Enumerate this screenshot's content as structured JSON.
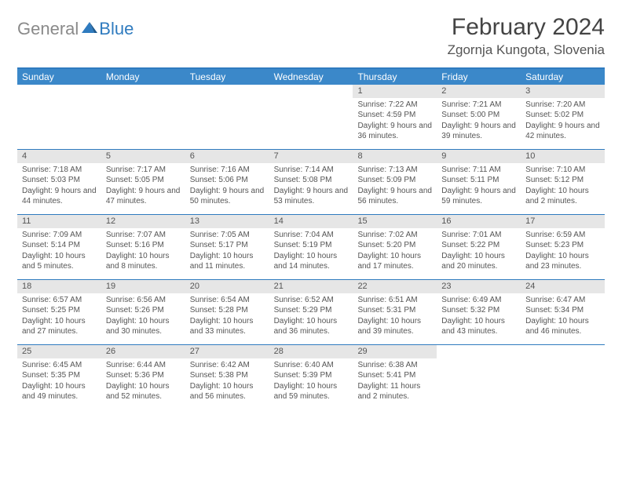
{
  "logo": {
    "text1": "General",
    "text2": "Blue"
  },
  "title": "February 2024",
  "location": "Zgornja Kungota, Slovenia",
  "colors": {
    "header_blue": "#3b88c9",
    "rule_blue": "#2f7bbf",
    "band_gray": "#e6e6e6",
    "text_gray": "#555555",
    "logo_gray": "#8a8a8a",
    "logo_blue": "#2f7bbf",
    "white": "#ffffff"
  },
  "typography": {
    "title_fontsize": 30,
    "location_fontsize": 17,
    "dayheader_fontsize": 12,
    "cell_fontsize": 10,
    "font_family": "Arial"
  },
  "dayHeaders": [
    "Sunday",
    "Monday",
    "Tuesday",
    "Wednesday",
    "Thursday",
    "Friday",
    "Saturday"
  ],
  "weeks": [
    [
      {
        "empty": true
      },
      {
        "empty": true
      },
      {
        "empty": true
      },
      {
        "empty": true
      },
      {
        "num": "1",
        "sunrise": "Sunrise: 7:22 AM",
        "sunset": "Sunset: 4:59 PM",
        "daylight": "Daylight: 9 hours and 36 minutes."
      },
      {
        "num": "2",
        "sunrise": "Sunrise: 7:21 AM",
        "sunset": "Sunset: 5:00 PM",
        "daylight": "Daylight: 9 hours and 39 minutes."
      },
      {
        "num": "3",
        "sunrise": "Sunrise: 7:20 AM",
        "sunset": "Sunset: 5:02 PM",
        "daylight": "Daylight: 9 hours and 42 minutes."
      }
    ],
    [
      {
        "num": "4",
        "sunrise": "Sunrise: 7:18 AM",
        "sunset": "Sunset: 5:03 PM",
        "daylight": "Daylight: 9 hours and 44 minutes."
      },
      {
        "num": "5",
        "sunrise": "Sunrise: 7:17 AM",
        "sunset": "Sunset: 5:05 PM",
        "daylight": "Daylight: 9 hours and 47 minutes."
      },
      {
        "num": "6",
        "sunrise": "Sunrise: 7:16 AM",
        "sunset": "Sunset: 5:06 PM",
        "daylight": "Daylight: 9 hours and 50 minutes."
      },
      {
        "num": "7",
        "sunrise": "Sunrise: 7:14 AM",
        "sunset": "Sunset: 5:08 PM",
        "daylight": "Daylight: 9 hours and 53 minutes."
      },
      {
        "num": "8",
        "sunrise": "Sunrise: 7:13 AM",
        "sunset": "Sunset: 5:09 PM",
        "daylight": "Daylight: 9 hours and 56 minutes."
      },
      {
        "num": "9",
        "sunrise": "Sunrise: 7:11 AM",
        "sunset": "Sunset: 5:11 PM",
        "daylight": "Daylight: 9 hours and 59 minutes."
      },
      {
        "num": "10",
        "sunrise": "Sunrise: 7:10 AM",
        "sunset": "Sunset: 5:12 PM",
        "daylight": "Daylight: 10 hours and 2 minutes."
      }
    ],
    [
      {
        "num": "11",
        "sunrise": "Sunrise: 7:09 AM",
        "sunset": "Sunset: 5:14 PM",
        "daylight": "Daylight: 10 hours and 5 minutes."
      },
      {
        "num": "12",
        "sunrise": "Sunrise: 7:07 AM",
        "sunset": "Sunset: 5:16 PM",
        "daylight": "Daylight: 10 hours and 8 minutes."
      },
      {
        "num": "13",
        "sunrise": "Sunrise: 7:05 AM",
        "sunset": "Sunset: 5:17 PM",
        "daylight": "Daylight: 10 hours and 11 minutes."
      },
      {
        "num": "14",
        "sunrise": "Sunrise: 7:04 AM",
        "sunset": "Sunset: 5:19 PM",
        "daylight": "Daylight: 10 hours and 14 minutes."
      },
      {
        "num": "15",
        "sunrise": "Sunrise: 7:02 AM",
        "sunset": "Sunset: 5:20 PM",
        "daylight": "Daylight: 10 hours and 17 minutes."
      },
      {
        "num": "16",
        "sunrise": "Sunrise: 7:01 AM",
        "sunset": "Sunset: 5:22 PM",
        "daylight": "Daylight: 10 hours and 20 minutes."
      },
      {
        "num": "17",
        "sunrise": "Sunrise: 6:59 AM",
        "sunset": "Sunset: 5:23 PM",
        "daylight": "Daylight: 10 hours and 23 minutes."
      }
    ],
    [
      {
        "num": "18",
        "sunrise": "Sunrise: 6:57 AM",
        "sunset": "Sunset: 5:25 PM",
        "daylight": "Daylight: 10 hours and 27 minutes."
      },
      {
        "num": "19",
        "sunrise": "Sunrise: 6:56 AM",
        "sunset": "Sunset: 5:26 PM",
        "daylight": "Daylight: 10 hours and 30 minutes."
      },
      {
        "num": "20",
        "sunrise": "Sunrise: 6:54 AM",
        "sunset": "Sunset: 5:28 PM",
        "daylight": "Daylight: 10 hours and 33 minutes."
      },
      {
        "num": "21",
        "sunrise": "Sunrise: 6:52 AM",
        "sunset": "Sunset: 5:29 PM",
        "daylight": "Daylight: 10 hours and 36 minutes."
      },
      {
        "num": "22",
        "sunrise": "Sunrise: 6:51 AM",
        "sunset": "Sunset: 5:31 PM",
        "daylight": "Daylight: 10 hours and 39 minutes."
      },
      {
        "num": "23",
        "sunrise": "Sunrise: 6:49 AM",
        "sunset": "Sunset: 5:32 PM",
        "daylight": "Daylight: 10 hours and 43 minutes."
      },
      {
        "num": "24",
        "sunrise": "Sunrise: 6:47 AM",
        "sunset": "Sunset: 5:34 PM",
        "daylight": "Daylight: 10 hours and 46 minutes."
      }
    ],
    [
      {
        "num": "25",
        "sunrise": "Sunrise: 6:45 AM",
        "sunset": "Sunset: 5:35 PM",
        "daylight": "Daylight: 10 hours and 49 minutes."
      },
      {
        "num": "26",
        "sunrise": "Sunrise: 6:44 AM",
        "sunset": "Sunset: 5:36 PM",
        "daylight": "Daylight: 10 hours and 52 minutes."
      },
      {
        "num": "27",
        "sunrise": "Sunrise: 6:42 AM",
        "sunset": "Sunset: 5:38 PM",
        "daylight": "Daylight: 10 hours and 56 minutes."
      },
      {
        "num": "28",
        "sunrise": "Sunrise: 6:40 AM",
        "sunset": "Sunset: 5:39 PM",
        "daylight": "Daylight: 10 hours and 59 minutes."
      },
      {
        "num": "29",
        "sunrise": "Sunrise: 6:38 AM",
        "sunset": "Sunset: 5:41 PM",
        "daylight": "Daylight: 11 hours and 2 minutes."
      },
      {
        "empty": true
      },
      {
        "empty": true
      }
    ]
  ]
}
